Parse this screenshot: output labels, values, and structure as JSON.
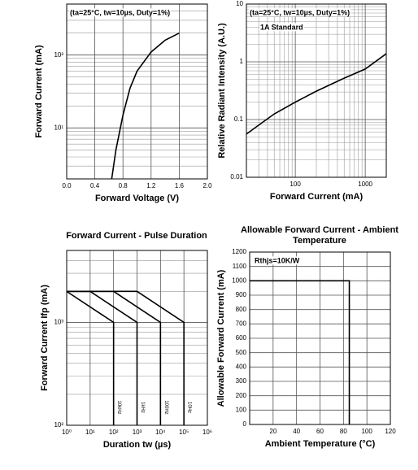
{
  "chart_data": [
    {
      "type": "line",
      "annotations": [
        "(ta=25°C, tw=10µs, Duty=1%)"
      ],
      "x_label": "Forward Voltage (V)",
      "y_label": "Forward Current (mA)",
      "ylog": true,
      "grid": true,
      "xlim": [
        0,
        2
      ],
      "xticks": [
        {
          "value": 0,
          "label": "0.0"
        },
        {
          "value": 0.4,
          "label": "0.4"
        },
        {
          "value": 0.8,
          "label": "0.8"
        },
        {
          "value": 1.2,
          "label": "1.2"
        },
        {
          "value": 1.6,
          "label": "1.6"
        },
        {
          "value": 2,
          "label": "2.0"
        }
      ],
      "ylim": [
        2,
        500
      ],
      "yticks": [
        {
          "value": 10,
          "label": "10¹"
        },
        {
          "value": 100,
          "label": "10²"
        }
      ],
      "minor_yticks": [
        2,
        3,
        4,
        5,
        6,
        7,
        8,
        9,
        20,
        30,
        40,
        50,
        60,
        70,
        80,
        90,
        200,
        300,
        400,
        500
      ],
      "series": [
        {
          "color": "#000000",
          "x": [
            0.64,
            0.7,
            0.8,
            0.9,
            1.0,
            1.2,
            1.4,
            1.6
          ],
          "values": [
            2,
            5,
            15,
            35,
            60,
            110,
            160,
            200
          ]
        }
      ]
    },
    {
      "type": "line",
      "annotations": [
        "(ta=25°C, tw=10µs, Duty=1%)",
        "1A Standard"
      ],
      "x_label": "Forward Current (mA)",
      "y_label": "Relative Radiant Intensity (A.U.)",
      "xlog": true,
      "ylog": true,
      "grid": true,
      "xlim": [
        20,
        2000
      ],
      "xticks": [
        100,
        1000
      ],
      "minor_xticks": [
        20,
        30,
        40,
        50,
        60,
        70,
        80,
        90,
        200,
        300,
        400,
        500,
        600,
        700,
        800,
        900,
        2000
      ],
      "ylim": [
        0.01,
        10
      ],
      "yticks": [
        0.01,
        0.1,
        1,
        10
      ],
      "minor_yticks": [
        0.02,
        0.03,
        0.04,
        0.05,
        0.06,
        0.07,
        0.08,
        0.09,
        0.2,
        0.3,
        0.4,
        0.5,
        0.6,
        0.7,
        0.8,
        0.9,
        2,
        3,
        4,
        5,
        6,
        7,
        8,
        9
      ],
      "series": [
        {
          "color": "#000000",
          "x": [
            20,
            30,
            50,
            100,
            200,
            500,
            1000,
            2000
          ],
          "values": [
            0.056,
            0.08,
            0.125,
            0.2,
            0.31,
            0.52,
            0.75,
            1.38
          ]
        }
      ]
    },
    {
      "type": "line",
      "title": "Forward Current - Pulse Duration",
      "x_label": "Duration tw (µs)",
      "y_label": "Forward Current Ifp (mA)",
      "xlog": true,
      "ylog": true,
      "grid": true,
      "xlim": [
        1,
        1000000
      ],
      "xticks": [
        {
          "value": 1,
          "label": "10⁰"
        },
        {
          "value": 10,
          "label": "10¹"
        },
        {
          "value": 100,
          "label": "10²"
        },
        {
          "value": 1000,
          "label": "10³"
        },
        {
          "value": 10000,
          "label": "10⁴"
        },
        {
          "value": 100000,
          "label": "10⁵"
        },
        {
          "value": 1000000,
          "label": "10⁶"
        }
      ],
      "ylim": [
        100,
        5000
      ],
      "yticks": [
        {
          "value": 100,
          "label": "10²"
        },
        {
          "value": 1000,
          "label": "10³"
        }
      ],
      "minor_yticks": [
        200,
        300,
        400,
        500,
        600,
        700,
        800,
        900,
        2000,
        3000,
        4000,
        5000
      ],
      "series": [
        {
          "name": "10kHz",
          "color": "#000000",
          "x": [
            1,
            100,
            100
          ],
          "values": [
            2000,
            1000,
            100
          ]
        },
        {
          "name": "1kHz",
          "color": "#000000",
          "x": [
            1,
            10,
            1000,
            1000
          ],
          "values": [
            2000,
            2000,
            1000,
            100
          ]
        },
        {
          "name": "100Hz",
          "color": "#000000",
          "x": [
            1,
            100,
            10000,
            10000
          ],
          "values": [
            2000,
            2000,
            1000,
            100
          ]
        },
        {
          "name": "10Hz",
          "color": "#000000",
          "x": [
            1,
            1000,
            100000,
            100000
          ],
          "values": [
            2000,
            2000,
            1000,
            100
          ]
        }
      ]
    },
    {
      "type": "line",
      "title": "Allowable Forward Current - Ambient Temperature",
      "annotations": [
        "Rthjs=10K/W"
      ],
      "x_label": "Ambient Temperature (°C)",
      "y_label": "Allowable Forward Current (mA)",
      "grid": true,
      "xlim": [
        0,
        120
      ],
      "xticks": [
        20,
        40,
        60,
        80,
        100,
        120
      ],
      "ylim": [
        0,
        1200
      ],
      "yticks": [
        0,
        100,
        200,
        300,
        400,
        500,
        600,
        700,
        800,
        900,
        1000,
        1100,
        1200
      ],
      "series": [
        {
          "color": "#000000",
          "x": [
            0,
            85,
            85
          ],
          "values": [
            1000,
            1000,
            0
          ]
        }
      ]
    }
  ]
}
